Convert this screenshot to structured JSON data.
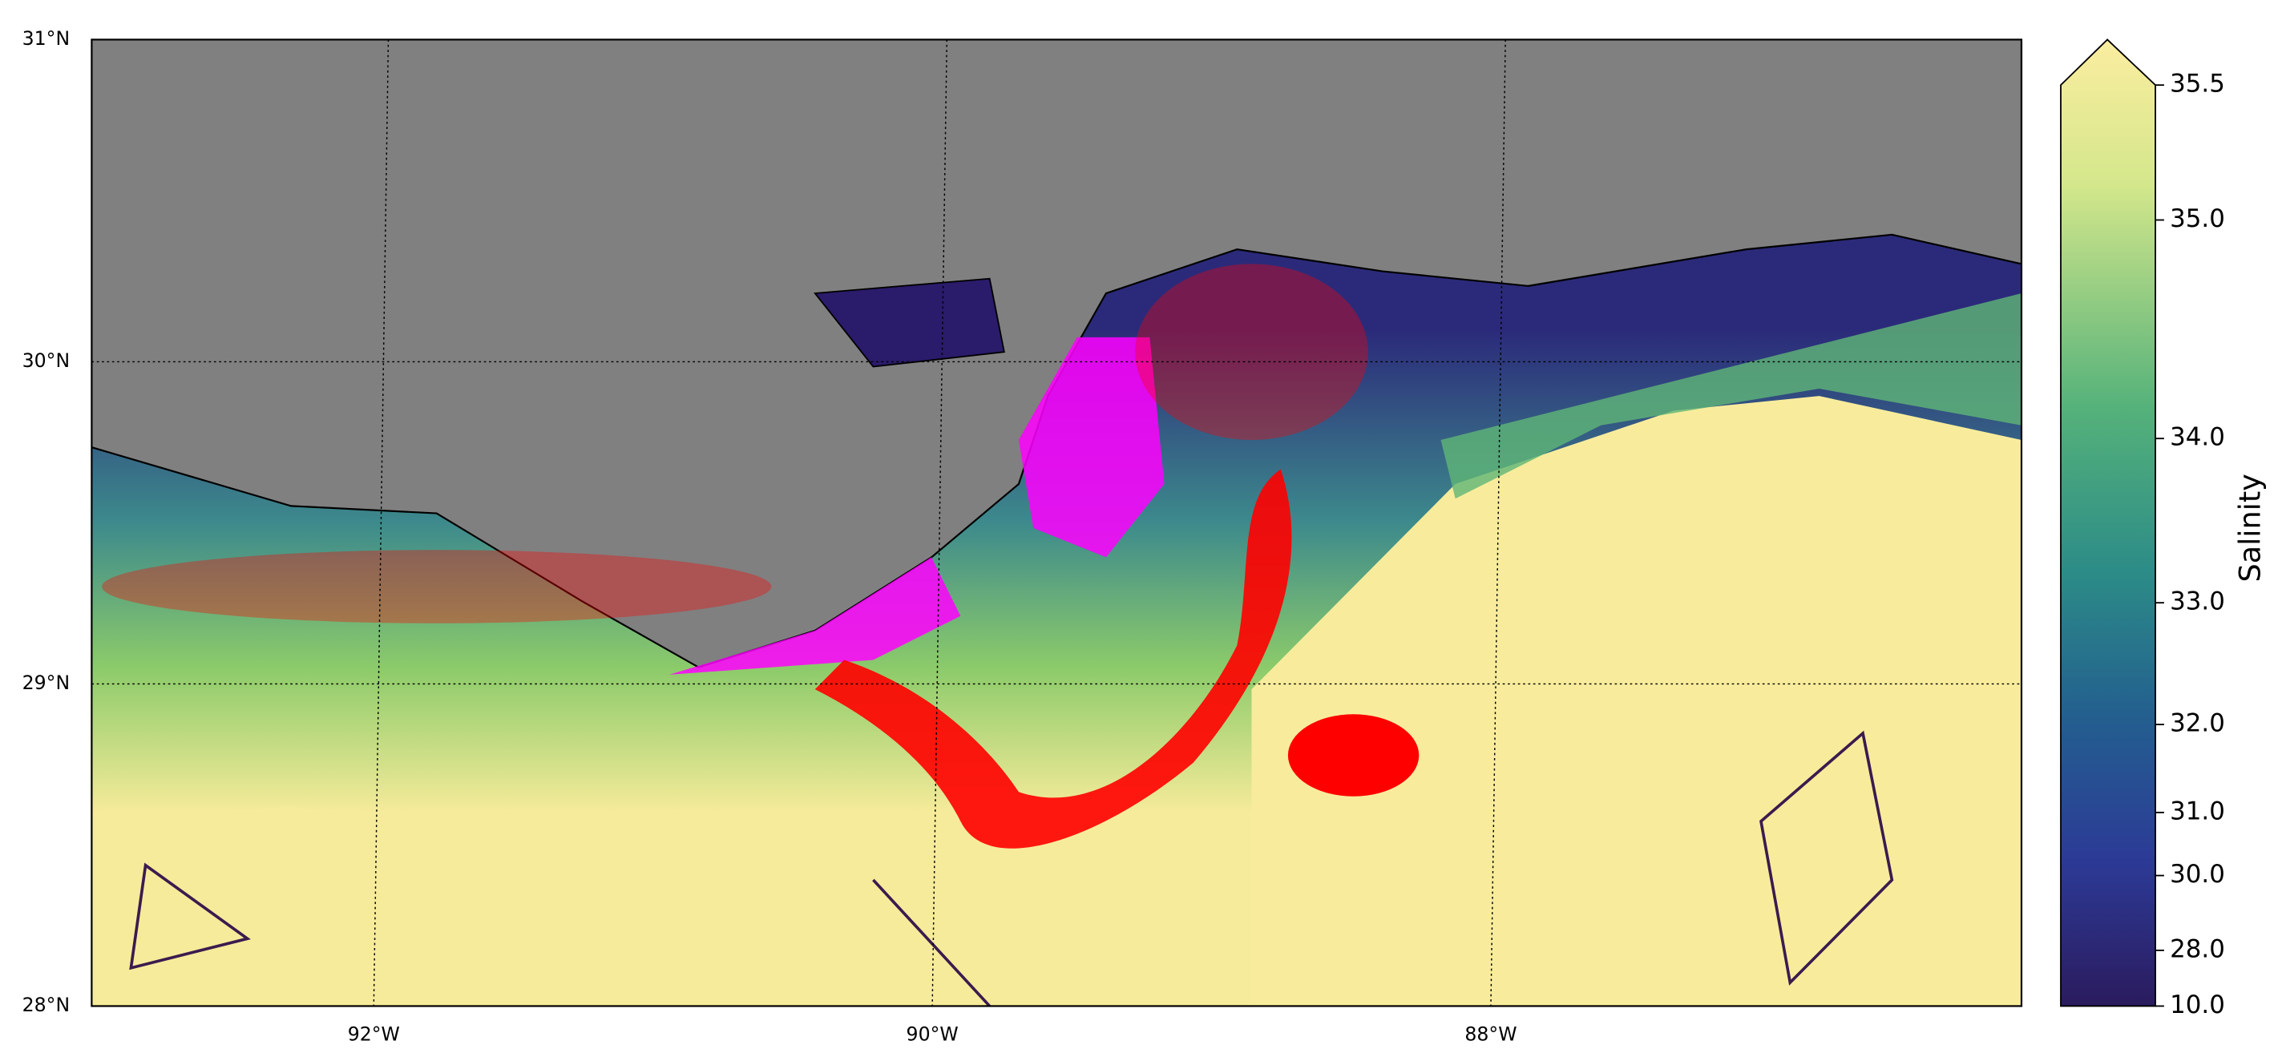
{
  "map": {
    "latlim": [
      28,
      31
    ],
    "lonlim": [
      -93.01,
      -86.1
    ],
    "latitudes": [
      {
        "value": 31,
        "label": "31°N"
      },
      {
        "value": 30,
        "label": "30°N"
      },
      {
        "value": 29,
        "label": "29°N"
      },
      {
        "value": 28,
        "label": "28°N"
      }
    ],
    "longitudes": [
      {
        "value": -92,
        "label": "92°W"
      },
      {
        "value": -90,
        "label": "90°W"
      },
      {
        "value": -88,
        "label": "88°W"
      }
    ],
    "colorbar": {
      "label": "Salinity",
      "ticks": [
        35.5,
        {
          "value": 35,
          "label": "35.0"
        },
        {
          "value": 34,
          "label": "34.0"
        },
        {
          "value": 33,
          "label": "33.0"
        },
        {
          "value": 32,
          "label": "32.0"
        },
        {
          "value": 31,
          "label": "31.0"
        },
        {
          "value": 30,
          "label": "30.0"
        },
        {
          "value": 28,
          "label": "28.0"
        },
        {
          "value": 10,
          "label": "10.0"
        }
      ]
    }
  }
}
